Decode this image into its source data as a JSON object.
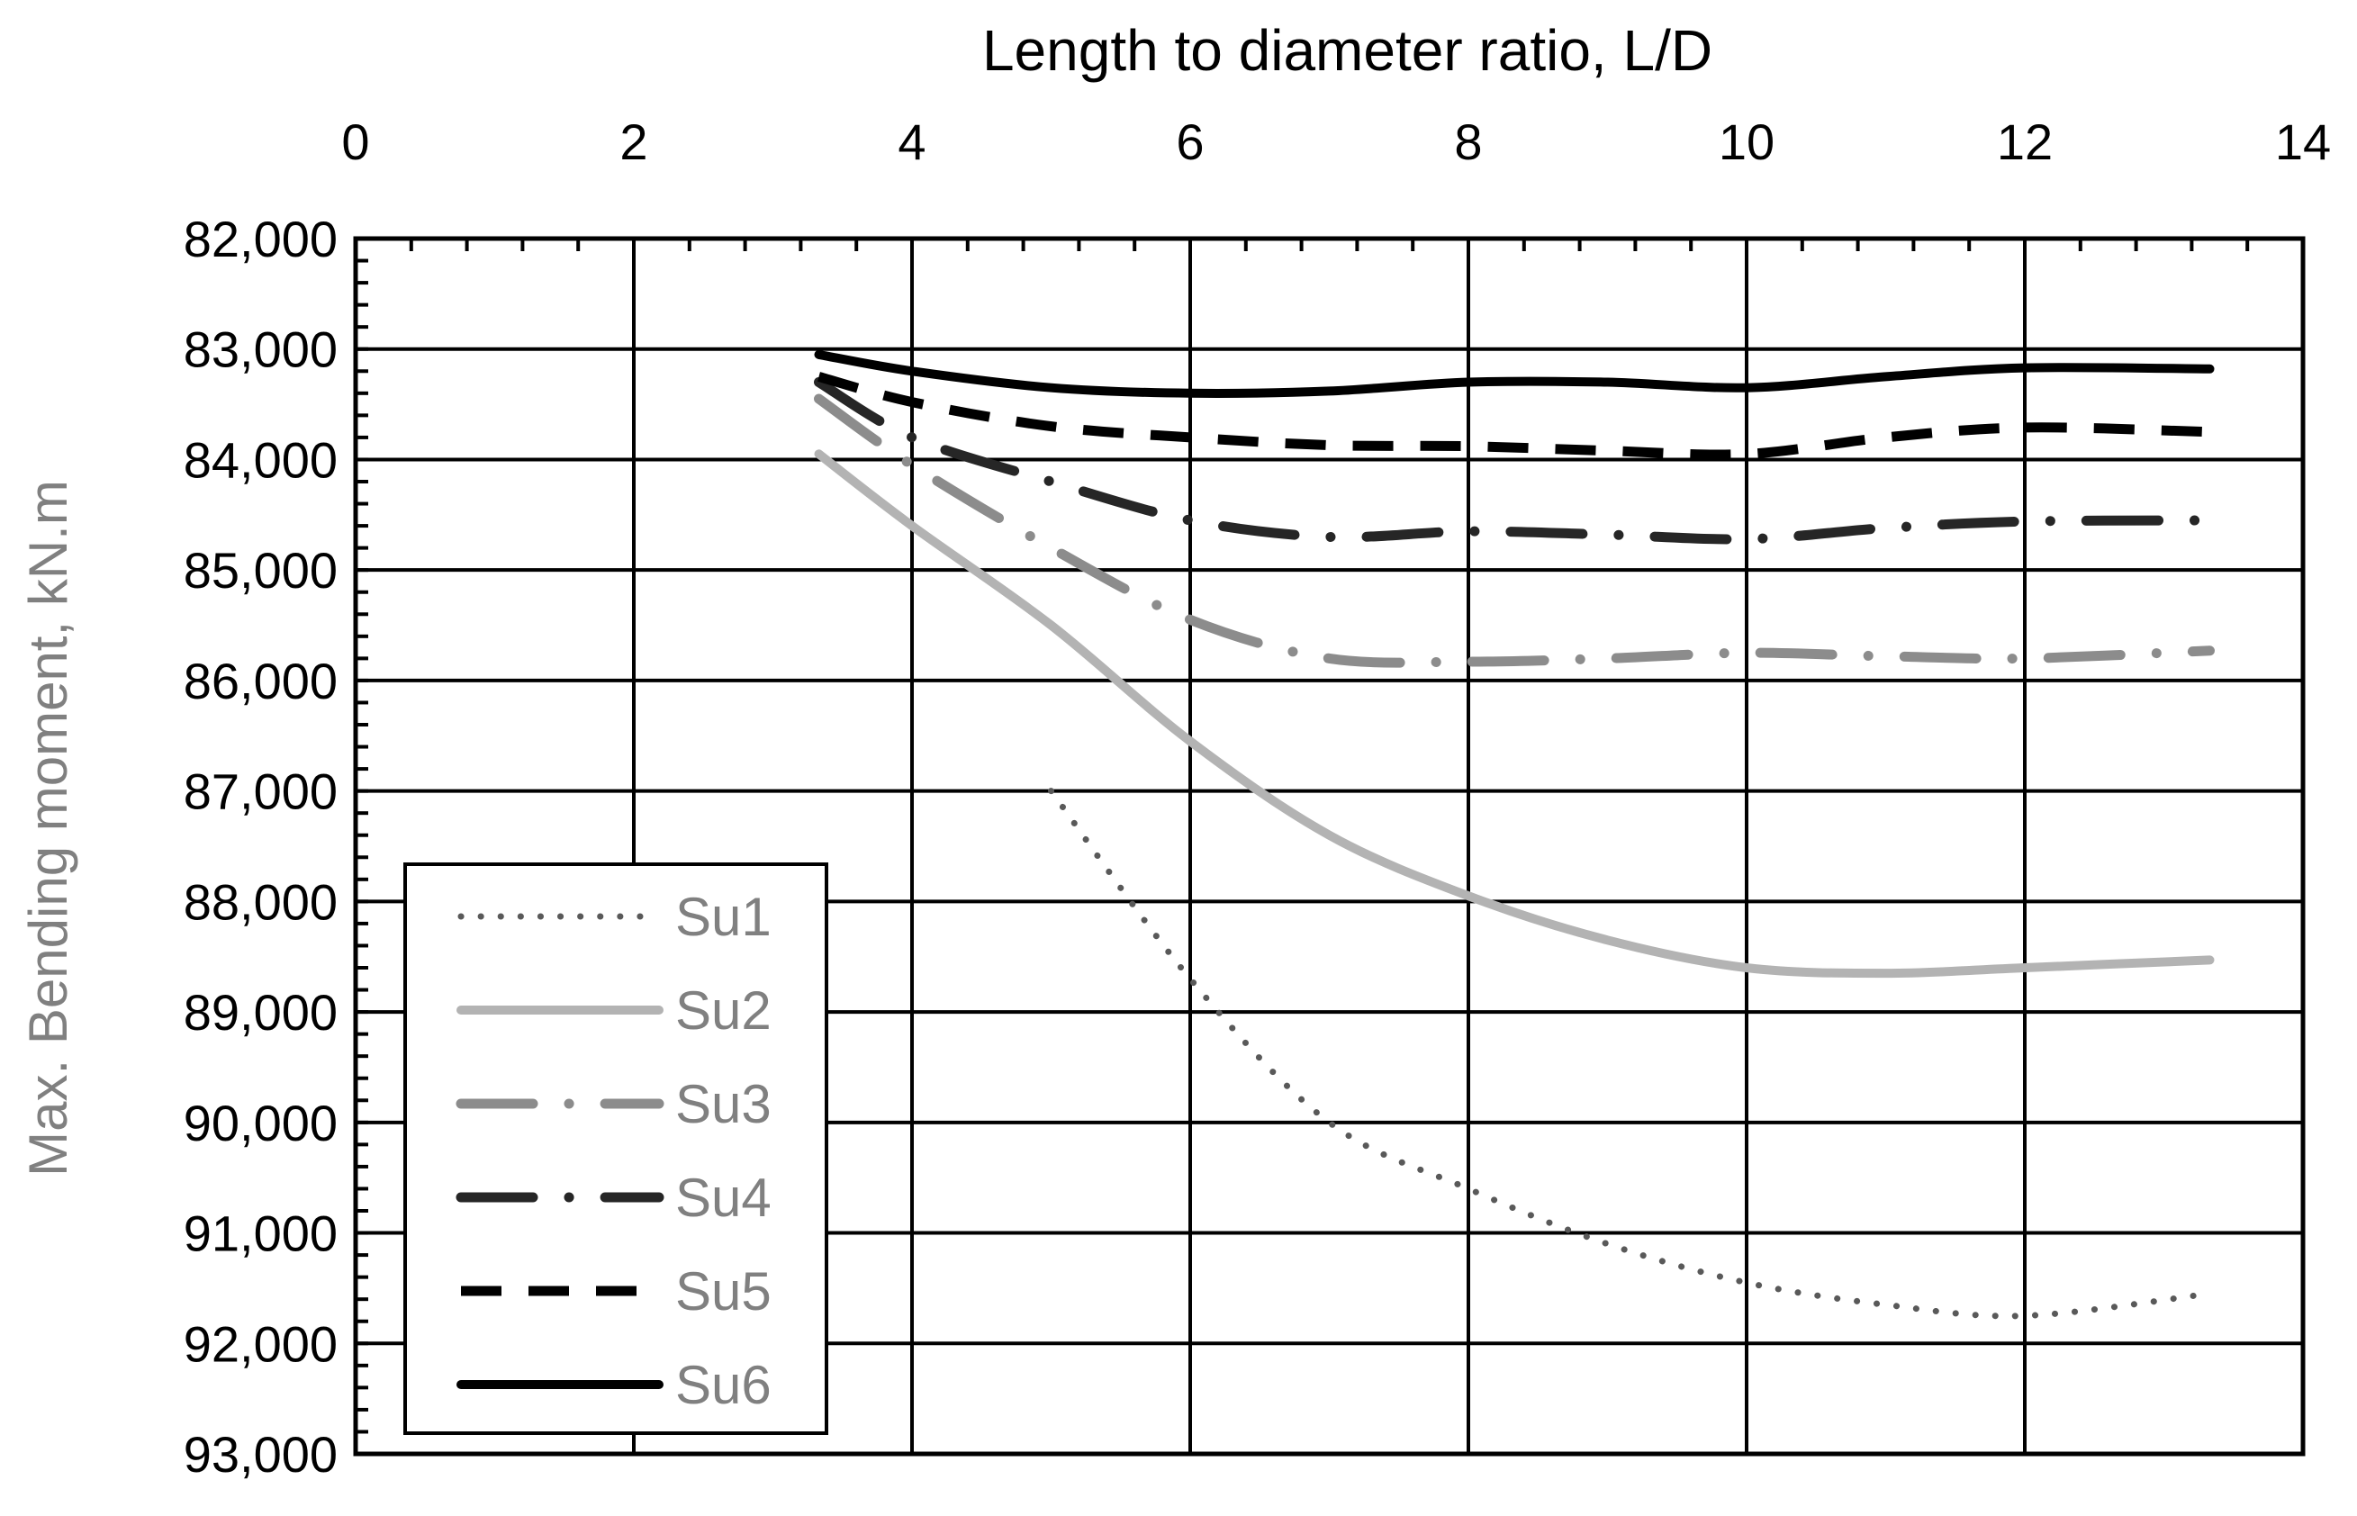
{
  "chart_data": {
    "type": "line",
    "xlabel": "Length to diameter ratio, L/D",
    "ylabel": "Max. Bending moment, kN.m",
    "xlim": [
      0,
      14
    ],
    "ylim": [
      82000,
      93000
    ],
    "y_axis_inverted": true,
    "x_axis_position": "top",
    "x_ticks": [
      0,
      2,
      4,
      6,
      8,
      10,
      12,
      14
    ],
    "x_tick_labels": [
      "0",
      "2",
      "4",
      "6",
      "8",
      "10",
      "12",
      "14"
    ],
    "y_ticks": [
      82000,
      83000,
      84000,
      85000,
      86000,
      87000,
      88000,
      89000,
      90000,
      91000,
      92000,
      93000
    ],
    "y_tick_labels": [
      "82,000",
      "83,000",
      "84,000",
      "85,000",
      "86,000",
      "87,000",
      "88,000",
      "89,000",
      "90,000",
      "91,000",
      "92,000",
      "93,000"
    ],
    "grid": true,
    "legend_position": "bottom-left",
    "series": [
      {
        "name": "Su1",
        "color": "#595959",
        "style": "dotted",
        "x": [
          5,
          6,
          7,
          8,
          9,
          10,
          11,
          12,
          13.33
        ],
        "y": [
          87000,
          88700,
          90000,
          90600,
          91100,
          91450,
          91650,
          91750,
          91550
        ]
      },
      {
        "name": "Su2",
        "color": "#b3b3b3",
        "style": "solid",
        "x": [
          3.33,
          4,
          5,
          6,
          7,
          8,
          9,
          10,
          11,
          12,
          13.33
        ],
        "y": [
          83950,
          84600,
          85500,
          86550,
          87400,
          87950,
          88350,
          88600,
          88650,
          88600,
          88530
        ]
      },
      {
        "name": "Su3",
        "color": "#8c8c8c",
        "style": "long-dash-dot",
        "x": [
          3.33,
          4,
          5,
          6,
          7,
          8,
          9,
          10,
          11,
          12,
          13.33
        ],
        "y": [
          83450,
          84050,
          84800,
          85450,
          85800,
          85830,
          85800,
          85750,
          85780,
          85800,
          85730
        ]
      },
      {
        "name": "Su4",
        "color": "#262626",
        "style": "long-dash-dot",
        "x": [
          3.33,
          4,
          5,
          6,
          7,
          8,
          9,
          10,
          11,
          12,
          13.33
        ],
        "y": [
          83300,
          83800,
          84200,
          84550,
          84700,
          84650,
          84680,
          84720,
          84620,
          84560,
          84550
        ]
      },
      {
        "name": "Su5",
        "color": "#000000",
        "style": "dashed",
        "x": [
          3.33,
          4,
          5,
          6,
          7,
          8,
          9,
          10,
          11,
          12,
          13.33
        ],
        "y": [
          83250,
          83480,
          83700,
          83800,
          83870,
          83880,
          83920,
          83950,
          83800,
          83710,
          83750
        ]
      },
      {
        "name": "Su6",
        "color": "#000000",
        "style": "solid",
        "x": [
          3.33,
          4,
          5,
          6,
          7,
          8,
          9,
          10,
          11,
          12,
          13.33
        ],
        "y": [
          83050,
          83200,
          83350,
          83400,
          83380,
          83300,
          83300,
          83350,
          83250,
          83170,
          83180
        ]
      }
    ]
  }
}
